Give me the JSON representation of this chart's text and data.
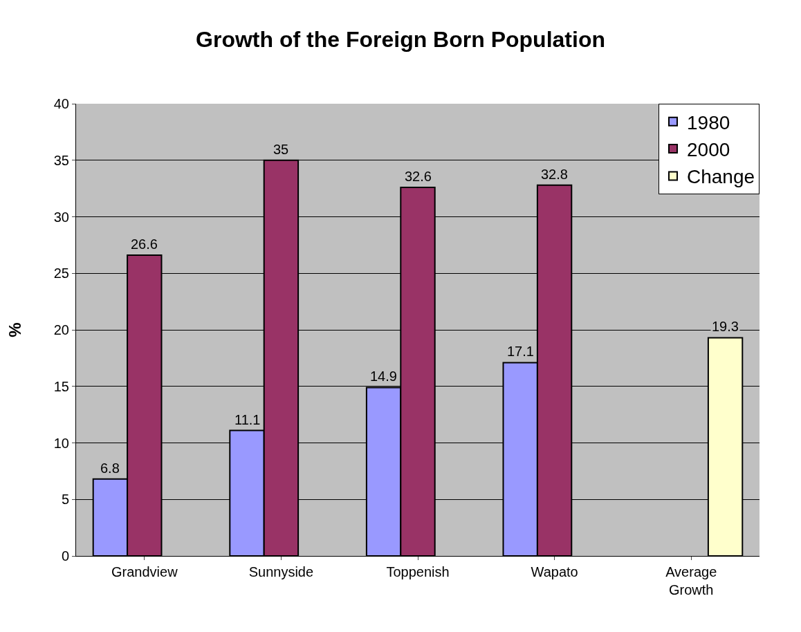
{
  "chart_data": {
    "type": "bar",
    "title": "Growth of the Foreign Born Population",
    "ylabel": "%",
    "categories": [
      "Grandview",
      "Sunnyside",
      "Toppenish",
      "Wapato",
      "Average Growth"
    ],
    "series": [
      {
        "name": "1980",
        "color": "#9999ff",
        "values": [
          6.8,
          11.1,
          14.9,
          17.1,
          null
        ]
      },
      {
        "name": "2000",
        "color": "#993366",
        "values": [
          26.6,
          35,
          32.6,
          32.8,
          null
        ]
      },
      {
        "name": "Change",
        "color": "#ffffcc",
        "values": [
          null,
          null,
          null,
          null,
          19.3
        ]
      }
    ],
    "ylim": [
      0,
      40
    ],
    "yticks": [
      0,
      5,
      10,
      15,
      20,
      25,
      30,
      35,
      40
    ],
    "grid": "y",
    "legend": "top right",
    "data_labels": true
  }
}
